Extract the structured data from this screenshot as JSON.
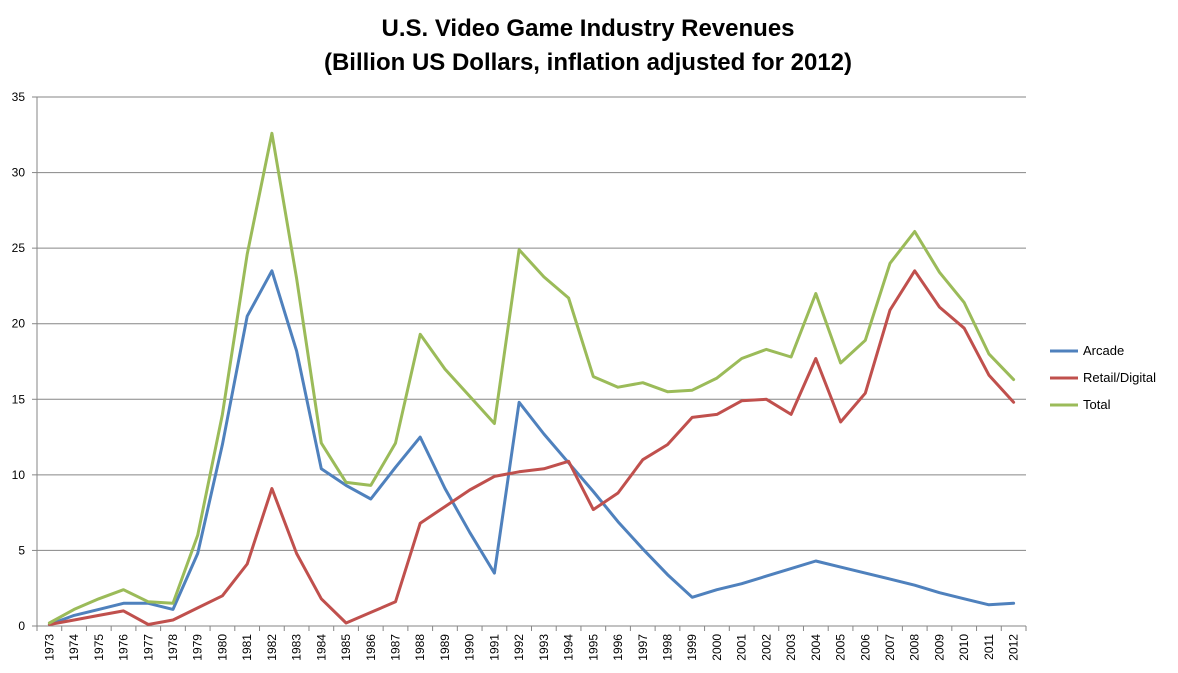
{
  "chart_data": {
    "type": "line",
    "title": "U.S. Video Game Industry Revenues",
    "subtitle": "(Billion US Dollars, inflation adjusted for 2012)",
    "xlabel": "",
    "ylabel": "",
    "ylim": [
      0,
      35
    ],
    "yticks": [
      0,
      5,
      10,
      15,
      20,
      25,
      30,
      35
    ],
    "grid": true,
    "legend_position": "right",
    "x": [
      "1973",
      "1974",
      "1975",
      "1976",
      "1977",
      "1978",
      "1979",
      "1980",
      "1981",
      "1982",
      "1983",
      "1984",
      "1985",
      "1986",
      "1987",
      "1988",
      "1989",
      "1990",
      "1991",
      "1992",
      "1993",
      "1994",
      "1995",
      "1996",
      "1997",
      "1998",
      "1999",
      "2000",
      "2001",
      "2002",
      "2003",
      "2004",
      "2005",
      "2006",
      "2007",
      "2008",
      "2009",
      "2010",
      "2011",
      "2012"
    ],
    "series": [
      {
        "name": "Arcade",
        "color": "#4F81BD",
        "values": [
          0.1,
          0.7,
          1.1,
          1.5,
          1.5,
          1.1,
          4.8,
          12.0,
          20.5,
          23.5,
          18.2,
          10.4,
          9.3,
          8.4,
          10.5,
          12.5,
          9.1,
          6.2,
          3.5,
          14.8,
          12.7,
          10.8,
          8.9,
          6.9,
          5.1,
          3.4,
          1.9,
          2.4,
          2.8,
          3.3,
          3.8,
          4.3,
          3.9,
          3.5,
          3.1,
          2.7,
          2.2,
          1.8,
          1.4,
          1.5
        ]
      },
      {
        "name": "Retail/Digital",
        "color": "#C0504D",
        "values": [
          0.1,
          0.4,
          0.7,
          1.0,
          0.1,
          0.4,
          1.2,
          2.0,
          4.1,
          9.1,
          4.8,
          1.8,
          0.2,
          0.9,
          1.6,
          6.8,
          7.9,
          9.0,
          9.9,
          10.2,
          10.4,
          10.9,
          7.7,
          8.8,
          11.0,
          12.0,
          13.8,
          14.0,
          14.9,
          15.0,
          14.0,
          17.7,
          13.5,
          15.4,
          20.9,
          23.5,
          21.1,
          19.7,
          16.6,
          14.8
        ]
      },
      {
        "name": "Total",
        "color": "#9BBB59",
        "values": [
          0.2,
          1.1,
          1.8,
          2.4,
          1.6,
          1.5,
          6.0,
          14.0,
          24.6,
          32.6,
          23.0,
          12.1,
          9.5,
          9.3,
          12.1,
          19.3,
          17.0,
          15.2,
          13.4,
          24.9,
          23.1,
          21.7,
          16.5,
          15.8,
          16.1,
          15.5,
          15.6,
          16.4,
          17.7,
          18.3,
          17.8,
          22.0,
          17.4,
          18.9,
          24.0,
          26.1,
          23.4,
          21.4,
          18.0,
          16.3
        ]
      }
    ]
  }
}
